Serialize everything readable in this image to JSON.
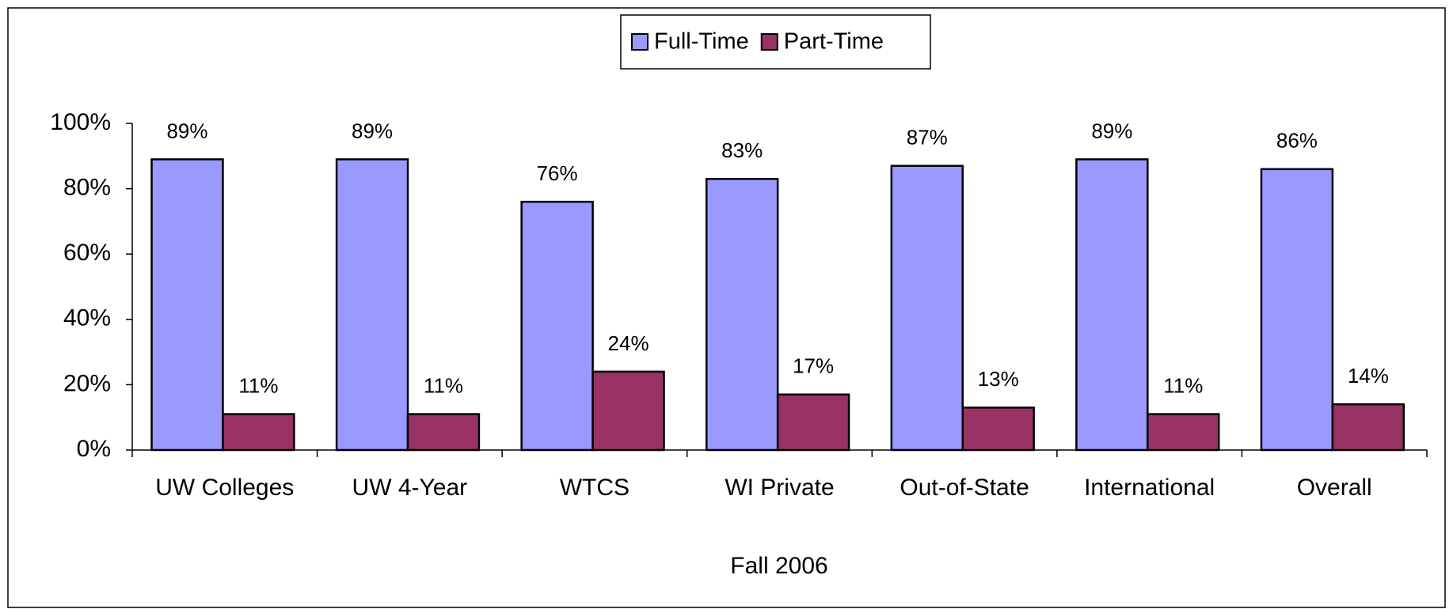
{
  "chart_data": {
    "type": "bar",
    "x_label": "Fall 2006",
    "categories": [
      "UW Colleges",
      "UW 4-Year",
      "WTCS",
      "WI Private",
      "Out-of-State",
      "International",
      "Overall"
    ],
    "series": [
      {
        "name": "Full-Time",
        "color": "#9999ff",
        "values": [
          89,
          89,
          76,
          83,
          87,
          89,
          86
        ],
        "value_labels": [
          "89%",
          "89%",
          "76%",
          "83%",
          "87%",
          "89%",
          "86%"
        ]
      },
      {
        "name": "Part-Time",
        "color": "#993366",
        "values": [
          11,
          11,
          24,
          17,
          13,
          11,
          14
        ],
        "value_labels": [
          "11%",
          "11%",
          "24%",
          "17%",
          "13%",
          "11%",
          "14%"
        ]
      }
    ],
    "ylim": [
      0,
      100
    ],
    "yticks": [
      {
        "value": 0,
        "label": "0%"
      },
      {
        "value": 20,
        "label": "20%"
      },
      {
        "value": 40,
        "label": "40%"
      },
      {
        "value": 60,
        "label": "60%"
      },
      {
        "value": 80,
        "label": "80%"
      },
      {
        "value": 100,
        "label": "100%"
      }
    ],
    "legend": "top"
  }
}
